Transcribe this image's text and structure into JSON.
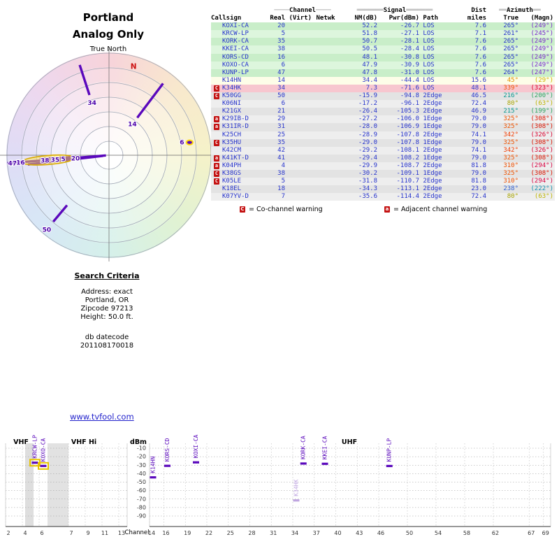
{
  "report": {
    "radar_title1": "Portland",
    "radar_title2": "Analog Only",
    "radar_axis_label": "True North",
    "link_text": "www.tvfool.com",
    "search": {
      "heading": "Search Criteria",
      "line1": "Address: exact",
      "line2": "Portland, OR",
      "line3": "Zipcode 97213",
      "line4": "Height: 50.0 ft.",
      "datecode_label": "db datecode",
      "datecode": "201108170018"
    },
    "legend": {
      "co_badge": "C",
      "co_text": "= Co-channel warning",
      "adj_badge": "a",
      "adj_text": "= Adjacent channel warning"
    }
  },
  "radar_spec": {
    "compass_colors": [
      "#f7d3da",
      "#f8e8cd",
      "#f5f2c9",
      "#e0f2d3",
      "#d5f0ea",
      "#d7e7f6",
      "#dfdcf6",
      "#eed8ee"
    ],
    "magnetic_north": {
      "label": "N",
      "azimuth": 15.5,
      "r": 0.9,
      "color": "#cc1111"
    },
    "spokes": [
      {
        "label": "34",
        "azimuth": 342,
        "r0": 0.62,
        "r1": 0.93,
        "label_r": 0.54
      },
      {
        "label": "14",
        "azimuth": 37,
        "r0": 0.46,
        "r1": 0.88,
        "label_r": 0.38
      },
      {
        "label": "50",
        "azimuth": 220,
        "r0": 0.64,
        "r1": 0.85,
        "label_r": 0.95
      }
    ],
    "dot": {
      "label": "6",
      "azimuth": 81,
      "r": 0.8
    },
    "cluster": {
      "azimuth": 265.5,
      "lines": [
        [
          265.5,
          0.03,
          1.0
        ],
        [
          263.5,
          0.06,
          0.8
        ],
        [
          267.0,
          0.3,
          0.68
        ]
      ],
      "labels": [
        [
          "47",
          0.95
        ],
        [
          "16",
          0.87
        ],
        [
          "38",
          0.63
        ],
        [
          "35",
          0.53
        ],
        [
          "5",
          0.45
        ],
        [
          "20",
          0.33
        ]
      ],
      "highlight": {
        "azimuth": 265.5,
        "r": 0.6,
        "rx": 38,
        "ry": 6.5
      }
    }
  },
  "chart_data": [
    {
      "id": "stations",
      "type": "table",
      "header_groups": {
        "channel": {
          "pre": "────",
          "word": "Channel",
          "post": "────"
        },
        "signal": {
          "pre": "═══════",
          "word": "Signal",
          "post": "═══════"
        },
        "dist": "Dist",
        "azimuth": {
          "pre": "══",
          "word": "Azimuth",
          "post": "══"
        }
      },
      "columns": [
        "Callsign",
        "Real",
        "(Virt)",
        "Netwk",
        "NM(dB)",
        "Pwr(dBm)",
        "Path",
        "miles",
        "True",
        "(Magn)"
      ],
      "rows": [
        [
          "",
          "KOXI-CA",
          "20",
          "",
          "",
          "52.2",
          "-26.7",
          "LOS",
          "7.6",
          "265°",
          "(249°)",
          "#c9eec9",
          "#2633cc",
          "#7a29cc"
        ],
        [
          "",
          "KRCW-LP",
          "5",
          "",
          "",
          "51.8",
          "-27.1",
          "LOS",
          "7.1",
          "261°",
          "(245°)",
          "#ddf6dd",
          "#2633cc",
          "#7a29cc"
        ],
        [
          "",
          "KORK-CA",
          "35",
          "",
          "",
          "50.7",
          "-28.1",
          "LOS",
          "7.6",
          "265°",
          "(249°)",
          "#c9eec9",
          "#2633cc",
          "#7a29cc"
        ],
        [
          "",
          "KKEI-CA",
          "38",
          "",
          "",
          "50.5",
          "-28.4",
          "LOS",
          "7.6",
          "265°",
          "(249°)",
          "#ddf6dd",
          "#2633cc",
          "#7a29cc"
        ],
        [
          "",
          "KORS-CD",
          "16",
          "",
          "",
          "48.1",
          "-30.8",
          "LOS",
          "7.6",
          "265°",
          "(249°)",
          "#c9eec9",
          "#2633cc",
          "#7a29cc"
        ],
        [
          "",
          "KOXO-CA",
          "6",
          "",
          "",
          "47.9",
          "-30.9",
          "LOS",
          "7.6",
          "265°",
          "(249°)",
          "#ddf6dd",
          "#2633cc",
          "#7a29cc"
        ],
        [
          "",
          "KUNP-LP",
          "47",
          "",
          "",
          "47.8",
          "-31.0",
          "LOS",
          "7.6",
          "264°",
          "(247°)",
          "#c9eec9",
          "#2633cc",
          "#7a29cc"
        ],
        [
          "",
          "K14HN",
          "14",
          "",
          "",
          "34.4",
          "-44.4",
          "LOS",
          "15.6",
          "45°",
          "(29°)",
          "#fdfde8",
          "#e39000",
          "#cdb400"
        ],
        [
          "C",
          "K34HK",
          "34",
          "",
          "",
          "7.3",
          "-71.6",
          "LOS",
          "48.1",
          "339°",
          "(323°)",
          "#f7c6cf",
          "#f05300",
          "#dc0028"
        ],
        [
          "C",
          "K50GG",
          "50",
          "",
          "",
          "-15.9",
          "-94.8",
          "2Edge",
          "46.5",
          "216°",
          "(200°)",
          "#e3e3e3",
          "#0b9890",
          "#2fa560"
        ],
        [
          "",
          "K06NI",
          "6",
          "",
          "",
          "-17.2",
          "-96.1",
          "2Edge",
          "72.4",
          "80°",
          "(63°)",
          "#eeeeee",
          "#a8a400",
          "#bdb300"
        ],
        [
          "",
          "K21GX",
          "21",
          "",
          "",
          "-26.4",
          "-105.3",
          "2Edge",
          "46.9",
          "215°",
          "(199°)",
          "#e3e3e3",
          "#0b9890",
          "#2fa560"
        ],
        [
          "a",
          "K29IB-D",
          "29",
          "",
          "",
          "-27.2",
          "-106.0",
          "1Edge",
          "79.0",
          "325°",
          "(308°)",
          "#eeeeee",
          "#ef5300",
          "#dc1400"
        ],
        [
          "a",
          "K31IR-D",
          "31",
          "",
          "",
          "-28.0",
          "-106.9",
          "1Edge",
          "79.0",
          "325°",
          "(308°)",
          "#e3e3e3",
          "#ef5300",
          "#dc1400"
        ],
        [
          "",
          "K25CH",
          "25",
          "",
          "",
          "-28.9",
          "-107.8",
          "2Edge",
          "74.1",
          "342°",
          "(326°)",
          "#eeeeee",
          "#f03c00",
          "#d8002e"
        ],
        [
          "C",
          "K35HU",
          "35",
          "",
          "",
          "-29.0",
          "-107.8",
          "1Edge",
          "79.0",
          "325°",
          "(308°)",
          "#e3e3e3",
          "#ef5300",
          "#dc1400"
        ],
        [
          "",
          "K42CM",
          "42",
          "",
          "",
          "-29.2",
          "-108.1",
          "2Edge",
          "74.1",
          "342°",
          "(326°)",
          "#eeeeee",
          "#f03c00",
          "#d8002e"
        ],
        [
          "a",
          "K41KT-D",
          "41",
          "",
          "",
          "-29.4",
          "-108.2",
          "1Edge",
          "79.0",
          "325°",
          "(308°)",
          "#e3e3e3",
          "#ef5300",
          "#dc1400"
        ],
        [
          "a",
          "K04PH",
          "4",
          "",
          "",
          "-29.9",
          "-108.7",
          "2Edge",
          "81.8",
          "310°",
          "(294°)",
          "#eeeeee",
          "#ee4f00",
          "#d90040"
        ],
        [
          "C",
          "K38GS",
          "38",
          "",
          "",
          "-30.2",
          "-109.1",
          "1Edge",
          "79.0",
          "325°",
          "(308°)",
          "#e3e3e3",
          "#ef5300",
          "#dc1400"
        ],
        [
          "C",
          "K05LE",
          "5",
          "",
          "",
          "-31.8",
          "-110.7",
          "2Edge",
          "81.8",
          "310°",
          "(294°)",
          "#eeeeee",
          "#ee4f00",
          "#d90040"
        ],
        [
          "",
          "K18EL",
          "18",
          "",
          "",
          "-34.3",
          "-113.1",
          "2Edge",
          "23.0",
          "238°",
          "(222°)",
          "#e3e3e3",
          "#2f5fd0",
          "#1390b0"
        ],
        [
          "",
          "K07YV-D",
          "7",
          "",
          "",
          "-35.6",
          "-114.4",
          "2Edge",
          "72.4",
          "80°",
          "(63°)",
          "#eeeeee",
          "#a8a400",
          "#bdb300"
        ]
      ]
    },
    {
      "id": "spectrum",
      "type": "scatter",
      "xlabel": "Channel",
      "ylabel": "dBm",
      "ylim": [
        -90,
        -10
      ],
      "sections": [
        "VHF",
        "VHF Hi",
        "UHF"
      ],
      "yticks": [
        -10,
        -20,
        -30,
        -40,
        -50,
        -60,
        -70,
        -80,
        -90
      ],
      "vhf_lo_ticks": [
        2,
        4,
        6
      ],
      "vhf_hi_ticks": [
        7,
        9,
        11,
        13
      ],
      "uhf_ticks": [
        14,
        16,
        19,
        22,
        25,
        28,
        31,
        34,
        37,
        40,
        43,
        46,
        50,
        54,
        58,
        62,
        67,
        69
      ],
      "points": [
        {
          "callsign": "KRCW-LP",
          "channel": 5,
          "dbm": -27.1,
          "band": "vlo",
          "highlight": true
        },
        {
          "callsign": "KOXO-CA",
          "channel": 6,
          "dbm": -30.9,
          "band": "vlo",
          "highlight": true
        },
        {
          "callsign": "K14HN",
          "channel": 14,
          "dbm": -44.4,
          "band": "uhf"
        },
        {
          "callsign": "KORS-CD",
          "channel": 16,
          "dbm": -30.8,
          "band": "uhf"
        },
        {
          "callsign": "KOXI-CA",
          "channel": 20,
          "dbm": -26.7,
          "band": "uhf"
        },
        {
          "callsign": "K34HK",
          "channel": 34,
          "dbm": -71.6,
          "band": "uhf",
          "faint": true
        },
        {
          "callsign": "KORK-CA",
          "channel": 35,
          "dbm": -28.1,
          "band": "uhf"
        },
        {
          "callsign": "KKEI-CA",
          "channel": 38,
          "dbm": -28.4,
          "band": "uhf"
        },
        {
          "callsign": "KUNP-LP",
          "channel": 47,
          "dbm": -31.0,
          "band": "uhf"
        }
      ]
    },
    {
      "id": "radar",
      "type": "scatter",
      "polar": true,
      "title": "Portland Analog Only",
      "angle_unit": "degrees_true",
      "points": [
        {
          "label": "34",
          "azimuth": 339
        },
        {
          "label": "14",
          "azimuth": 45
        },
        {
          "label": "6",
          "azimuth": 80
        },
        {
          "label": "47",
          "azimuth": 264
        },
        {
          "label": "16",
          "azimuth": 265
        },
        {
          "label": "38",
          "azimuth": 265
        },
        {
          "label": "35",
          "azimuth": 265
        },
        {
          "label": "5",
          "azimuth": 261
        },
        {
          "label": "20",
          "azimuth": 265
        },
        {
          "label": "50",
          "azimuth": 216
        }
      ]
    }
  ]
}
